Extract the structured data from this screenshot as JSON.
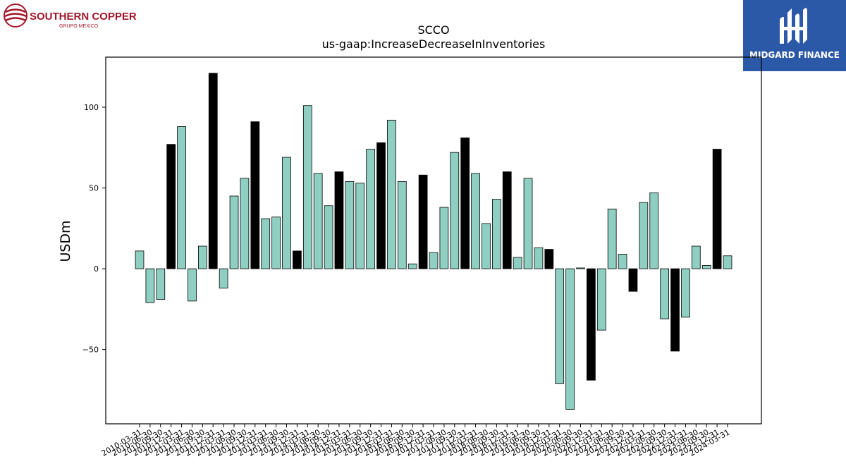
{
  "brand": {
    "left_name": "SOUTHERN COPPER",
    "left_sub": "GRUPO MEXICO",
    "right_name": "MIDGARD FINANCE",
    "left_color": "#a3172a",
    "right_bg": "#2c58a8"
  },
  "chart_data": {
    "type": "bar",
    "title": "SCCO",
    "subtitle": "us-gaap:IncreaseDecreaseInInventories",
    "xlabel": "",
    "ylabel": "USDm",
    "ylim": [
      -96,
      131
    ],
    "yticks": [
      -50,
      0,
      50,
      100
    ],
    "grid": false,
    "legend": "none",
    "colors": {
      "normal": "#8ecfc2",
      "q4": "#000000",
      "edge": "#000000"
    },
    "categories": [
      "2010-03-31",
      "2010-06-30",
      "2010-09-30",
      "2010-12-31",
      "2011-03-31",
      "2011-06-30",
      "2011-09-30",
      "2011-12-31",
      "2012-03-31",
      "2012-06-30",
      "2012-09-30",
      "2012-12-31",
      "2013-03-31",
      "2013-06-30",
      "2013-09-30",
      "2013-12-31",
      "2014-03-31",
      "2014-06-30",
      "2014-09-30",
      "2014-12-31",
      "2015-03-31",
      "2015-06-30",
      "2015-09-30",
      "2015-12-31",
      "2016-03-31",
      "2016-06-30",
      "2016-09-30",
      "2016-12-31",
      "2017-03-31",
      "2017-06-30",
      "2017-09-30",
      "2017-12-31",
      "2018-03-31",
      "2018-06-30",
      "2018-09-30",
      "2018-12-31",
      "2019-03-31",
      "2019-06-30",
      "2019-09-30",
      "2019-12-31",
      "2020-03-31",
      "2020-06-30",
      "2020-09-30",
      "2020-12-31",
      "2021-03-31",
      "2021-06-30",
      "2021-09-30",
      "2021-12-31",
      "2022-03-31",
      "2022-06-30",
      "2022-09-30",
      "2022-12-31",
      "2023-03-31",
      "2023-06-30",
      "2023-09-30",
      "2023-12-31",
      "2024-03-31"
    ],
    "values": [
      11,
      -21,
      -19,
      77,
      88,
      -20,
      14,
      121,
      -12,
      45,
      56,
      91,
      31,
      32,
      69,
      11,
      101,
      59,
      39,
      60,
      54,
      53,
      74,
      78,
      92,
      54,
      3,
      58,
      10,
      38,
      72,
      81,
      59,
      28,
      43,
      60,
      7,
      56,
      13,
      12,
      -71,
      -87,
      0.5,
      -69,
      -38,
      37,
      9,
      -14,
      41,
      47,
      -31,
      -51,
      -30,
      14,
      2,
      74,
      8
    ]
  }
}
